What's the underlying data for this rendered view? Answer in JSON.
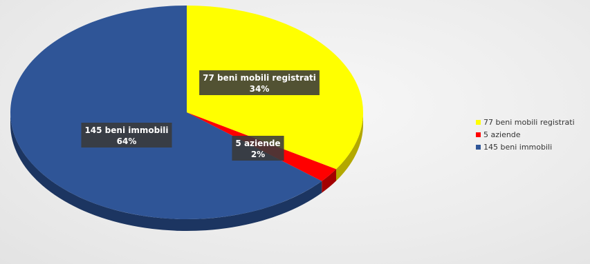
{
  "chart_data": {
    "type": "pie",
    "style": "3d",
    "title": "",
    "slices": [
      {
        "label": "77 beni mobili registrati",
        "value": 77,
        "percent": "34%",
        "color": "#ffff00",
        "side_color": "#b3a800"
      },
      {
        "label": "5 aziende",
        "value": 5,
        "percent": "2%",
        "color": "#ff0000",
        "side_color": "#a30000"
      },
      {
        "label": "145 beni immobili",
        "value": 145,
        "percent": "64%",
        "color": "#2f5597",
        "side_color": "#1c3561"
      }
    ],
    "legend": {
      "position": "right",
      "entries": [
        "77 beni mobili registrati",
        "5 aziende",
        "145 beni immobili"
      ]
    }
  }
}
